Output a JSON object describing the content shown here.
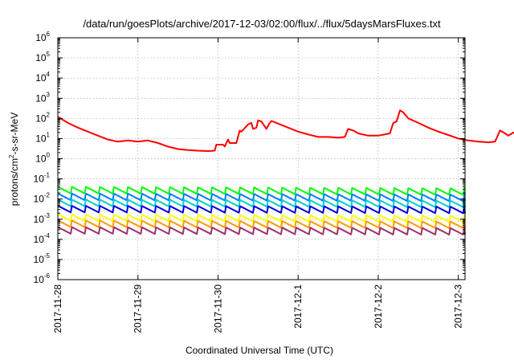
{
  "chart_data": {
    "type": "line",
    "title": "/data/run/goesPlots/archive/2017-12-03/02:00/flux/../flux/5daysMarsFluxes.txt",
    "xlabel": "Coordinated Universal Time (UTC)",
    "ylabel": {
      "pre": "protons/cm",
      "sup": "2",
      "post": "-s-sr-MeV"
    },
    "y_scale": "log",
    "ylim": [
      1e-06,
      1000000.0
    ],
    "y_ticks": [
      {
        "base": "10",
        "exp": "6"
      },
      {
        "base": "10",
        "exp": "5"
      },
      {
        "base": "10",
        "exp": "4"
      },
      {
        "base": "10",
        "exp": "3"
      },
      {
        "base": "10",
        "exp": "2"
      },
      {
        "base": "10",
        "exp": "1"
      },
      {
        "base": "10",
        "exp": "0"
      },
      {
        "base": "10",
        "exp": "-1"
      },
      {
        "base": "10",
        "exp": "-2"
      },
      {
        "base": "10",
        "exp": "-3"
      },
      {
        "base": "10",
        "exp": "-4"
      },
      {
        "base": "10",
        "exp": "-5"
      },
      {
        "base": "10",
        "exp": "-6"
      }
    ],
    "xlim": [
      "2017-11-28 00:00",
      "2017-12-03 02:00"
    ],
    "x_ticks": [
      "2017-11-28",
      "2017-11-29",
      "2017-11-30",
      "2017-12-1",
      "2017-12-2",
      "2017-12-3"
    ],
    "grid": true,
    "series": [
      {
        "color": "#ff0000",
        "sawtooth": false,
        "points": [
          [
            0,
            120
          ],
          [
            3,
            60
          ],
          [
            6,
            35
          ],
          [
            9,
            22
          ],
          [
            12,
            14
          ],
          [
            15,
            9
          ],
          [
            18,
            7
          ],
          [
            21,
            8
          ],
          [
            24,
            7
          ],
          [
            27,
            8
          ],
          [
            30,
            6
          ],
          [
            33,
            4
          ],
          [
            36,
            3
          ],
          [
            39,
            2.7
          ],
          [
            42,
            2.5
          ],
          [
            45,
            2.4
          ],
          [
            47,
            2.5
          ],
          [
            47.5,
            5
          ],
          [
            49.5,
            5
          ],
          [
            50,
            4
          ],
          [
            51,
            9
          ],
          [
            51.5,
            6
          ],
          [
            53.5,
            6
          ],
          [
            54.5,
            25
          ],
          [
            55,
            22
          ],
          [
            57,
            50
          ],
          [
            58,
            60
          ],
          [
            58.5,
            30
          ],
          [
            59.5,
            35
          ],
          [
            60,
            80
          ],
          [
            61,
            70
          ],
          [
            62,
            40
          ],
          [
            62.5,
            30
          ],
          [
            63.5,
            60
          ],
          [
            64,
            75
          ],
          [
            66,
            55
          ],
          [
            69,
            35
          ],
          [
            72,
            22
          ],
          [
            75,
            16
          ],
          [
            78,
            12
          ],
          [
            81,
            12
          ],
          [
            84,
            11
          ],
          [
            86,
            12
          ],
          [
            87,
            30
          ],
          [
            88.5,
            25
          ],
          [
            90,
            18
          ],
          [
            93,
            14
          ],
          [
            96,
            14
          ],
          [
            99.5,
            18
          ],
          [
            100.5,
            60
          ],
          [
            101.5,
            70
          ],
          [
            102.5,
            250
          ],
          [
            103.5,
            200
          ],
          [
            105,
            100
          ],
          [
            108,
            60
          ],
          [
            111,
            35
          ],
          [
            114,
            22
          ],
          [
            117,
            15
          ],
          [
            120,
            10
          ],
          [
            123,
            8
          ],
          [
            126,
            7
          ],
          [
            129,
            6.5
          ],
          [
            131,
            7
          ],
          [
            132.5,
            25
          ],
          [
            134,
            18
          ],
          [
            135,
            14
          ],
          [
            136.5,
            20
          ],
          [
            137.5,
            15
          ],
          [
            138,
            13
          ],
          [
            140,
            17
          ],
          [
            141,
            90
          ],
          [
            143,
            60
          ],
          [
            145,
            30
          ],
          [
            148,
            22
          ],
          [
            150,
            15
          ],
          [
            152,
            12
          ],
          [
            153,
            40
          ],
          [
            154,
            30
          ],
          [
            155,
            20
          ],
          [
            156,
            40
          ],
          [
            156.5,
            60
          ],
          [
            157.5,
            45
          ],
          [
            158.5,
            40
          ],
          [
            159,
            55
          ],
          [
            160,
            45
          ],
          [
            161.5,
            30
          ],
          [
            162.5,
            40
          ],
          [
            164,
            30
          ],
          [
            166,
            20
          ]
        ]
      },
      {
        "color": "#00ff00",
        "sawtooth": true,
        "amp": 0.6,
        "points": [
          [
            0,
            0.028
          ],
          [
            166,
            0.022
          ]
        ]
      },
      {
        "color": "#0080ff",
        "sawtooth": true,
        "amp": 0.6,
        "points": [
          [
            0,
            0.013
          ],
          [
            166,
            0.011
          ]
        ]
      },
      {
        "color": "#00d0d0",
        "sawtooth": true,
        "amp": 0.6,
        "points": [
          [
            0,
            0.0065
          ],
          [
            166,
            0.0055
          ]
        ]
      },
      {
        "color": "#0000dd",
        "sawtooth": true,
        "amp": 0.6,
        "points": [
          [
            0,
            0.0032
          ],
          [
            166,
            0.0028
          ]
        ]
      },
      {
        "color": "#ffff00",
        "sawtooth": true,
        "amp": 0.6,
        "points": [
          [
            0,
            0.0012
          ],
          [
            166,
            0.001
          ]
        ]
      },
      {
        "color": "#ff9900",
        "sawtooth": true,
        "amp": 0.6,
        "points": [
          [
            0,
            0.0006
          ],
          [
            166,
            0.0005
          ]
        ]
      },
      {
        "color": "#a0306a",
        "sawtooth": true,
        "amp": 0.6,
        "points": [
          [
            0,
            0.00028
          ],
          [
            166,
            0.00024
          ]
        ]
      }
    ]
  }
}
